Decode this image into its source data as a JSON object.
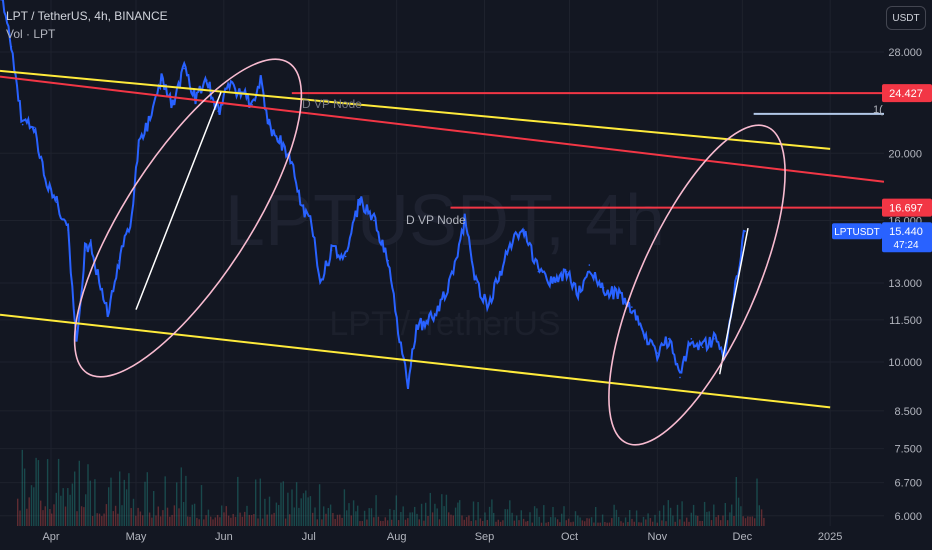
{
  "header": {
    "symbol_line": "LPT / TetherUS, 4h, BINANCE",
    "indicator": "Vol · LPT"
  },
  "currency_button": "USDT",
  "watermark": {
    "big": "LPTUSDT, 4h",
    "small": "LPT / TetherUS"
  },
  "colors": {
    "background": "#131722",
    "price_line": "#2962ff",
    "resistance": "#f23645",
    "channel": "#ffeb3b",
    "annotation": "#f8bbd0",
    "level_blue": "#b2c8e8"
  },
  "markers": {
    "d_vp_node_upper": "D VP Node",
    "d_vp_node_lower": "D VP Node",
    "off_chart_value": "1("
  },
  "chart_data": {
    "type": "line",
    "title": "LPT / TetherUS, 4h, BINANCE",
    "y_scale": "log",
    "ylim": [
      5.9,
      38
    ],
    "y_ticks": [
      28.0,
      20.0,
      16.0,
      13.0,
      11.5,
      10.0,
      8.5,
      7.5,
      6.7,
      6.0
    ],
    "y_tick_labels": [
      "28.000",
      "20.000",
      "16.000",
      "13.000",
      "11.500",
      "10.000",
      "8.500",
      "7.500",
      "6.700",
      "6.000"
    ],
    "x_labels": [
      "Apr",
      "May",
      "Jun",
      "Jul",
      "Aug",
      "Sep",
      "Oct",
      "Nov",
      "Dec",
      "2025"
    ],
    "x_dates": [
      "2024-04-01",
      "2024-05-01",
      "2024-06-01",
      "2024-07-01",
      "2024-08-01",
      "2024-09-01",
      "2024-10-01",
      "2024-11-01",
      "2024-12-01",
      "2025-01-01"
    ],
    "series": [
      {
        "name": "LPTUSDT",
        "color": "#2962ff",
        "dates": [
          "2024-03-14",
          "2024-03-18",
          "2024-03-22",
          "2024-03-26",
          "2024-03-30",
          "2024-04-03",
          "2024-04-07",
          "2024-04-10",
          "2024-04-13",
          "2024-04-15",
          "2024-04-18",
          "2024-04-21",
          "2024-04-25",
          "2024-04-29",
          "2024-05-02",
          "2024-05-06",
          "2024-05-10",
          "2024-05-14",
          "2024-05-18",
          "2024-05-22",
          "2024-05-26",
          "2024-05-30",
          "2024-06-03",
          "2024-06-07",
          "2024-06-11",
          "2024-06-14",
          "2024-06-17",
          "2024-06-20",
          "2024-06-24",
          "2024-06-28",
          "2024-07-02",
          "2024-07-05",
          "2024-07-09",
          "2024-07-14",
          "2024-07-19",
          "2024-07-24",
          "2024-07-29",
          "2024-08-01",
          "2024-08-05",
          "2024-08-08",
          "2024-08-12",
          "2024-08-16",
          "2024-08-21",
          "2024-08-25",
          "2024-08-29",
          "2024-09-02",
          "2024-09-06",
          "2024-09-10",
          "2024-09-15",
          "2024-09-20",
          "2024-09-25",
          "2024-09-30",
          "2024-10-04",
          "2024-10-08",
          "2024-10-13",
          "2024-10-18",
          "2024-10-23",
          "2024-10-27",
          "2024-11-01",
          "2024-11-05",
          "2024-11-09",
          "2024-11-13",
          "2024-11-17",
          "2024-11-21",
          "2024-11-25",
          "2024-11-28",
          "2024-12-01",
          "2024-12-02"
        ],
        "values": [
          34.5,
          28.5,
          22.0,
          21.8,
          18.4,
          17.0,
          15.5,
          10.8,
          14.5,
          15.0,
          13.0,
          11.8,
          14.0,
          15.8,
          20.5,
          22.5,
          25.5,
          23.5,
          26.5,
          24.0,
          25.5,
          23.0,
          25.0,
          24.5,
          23.5,
          25.5,
          22.0,
          21.0,
          20.0,
          17.0,
          15.8,
          13.0,
          14.5,
          14.2,
          17.2,
          16.0,
          14.0,
          11.5,
          9.3,
          11.2,
          11.5,
          12.0,
          13.5,
          16.0,
          13.0,
          12.0,
          13.2,
          14.8,
          15.5,
          13.5,
          13.0,
          13.5,
          12.5,
          13.8,
          12.8,
          12.5,
          12.0,
          11.0,
          10.3,
          10.8,
          9.5,
          10.8,
          10.5,
          10.8,
          10.2,
          12.5,
          14.8,
          15.44
        ]
      }
    ],
    "last_price": {
      "symbol": "LPTUSDT",
      "value": "15.440",
      "countdown": "47:24"
    },
    "price_labels": [
      {
        "value": 24.427,
        "label": "24.427",
        "color": "#f23645"
      },
      {
        "value": 16.697,
        "label": "16.697",
        "color": "#f23645"
      }
    ],
    "horizontal_lines": [
      {
        "value": 24.427,
        "from": "2024-06-25",
        "to": "2025-01-20",
        "color": "#f23645"
      },
      {
        "value": 16.697,
        "from": "2024-08-20",
        "to": "2025-01-20",
        "color": "#f23645"
      },
      {
        "value": 22.8,
        "from": "2024-12-05",
        "to": "2025-01-20",
        "color": "#b2c8e8"
      }
    ],
    "trend_lines": [
      {
        "color": "#ffeb3b",
        "from": [
          "2024-03-14",
          26.3
        ],
        "to": [
          "2025-01-01",
          20.3
        ]
      },
      {
        "color": "#ffeb3b",
        "from": [
          "2024-03-14",
          11.7
        ],
        "to": [
          "2025-01-01",
          8.6
        ]
      },
      {
        "color": "#f23645",
        "from": [
          "2024-03-14",
          25.8
        ],
        "to": [
          "2025-01-20",
          18.2
        ]
      },
      {
        "color": "#ffffff",
        "from": [
          "2024-05-01",
          11.9
        ],
        "to": [
          "2024-05-31",
          24.5
        ]
      },
      {
        "color": "#ffffff",
        "from": [
          "2024-11-23",
          9.6
        ],
        "to": [
          "2024-12-03",
          15.6
        ]
      }
    ],
    "volume": {
      "dates": [
        "2024-03-20",
        "2024-04-01",
        "2024-04-13",
        "2024-04-25",
        "2024-05-07",
        "2024-05-19",
        "2024-05-31",
        "2024-06-12",
        "2024-06-24",
        "2024-07-06",
        "2024-07-18",
        "2024-07-30",
        "2024-08-11",
        "2024-08-23",
        "2024-09-04",
        "2024-09-16",
        "2024-09-28",
        "2024-10-10",
        "2024-10-22",
        "2024-11-03",
        "2024-11-15",
        "2024-11-27"
      ],
      "values": [
        0.8,
        0.7,
        0.6,
        0.5,
        0.55,
        0.4,
        0.5,
        0.45,
        0.4,
        0.35,
        0.3,
        0.3,
        0.4,
        0.3,
        0.25,
        0.2,
        0.2,
        0.2,
        0.2,
        0.25,
        0.3,
        0.45
      ]
    },
    "grid": true,
    "legend": "none"
  }
}
